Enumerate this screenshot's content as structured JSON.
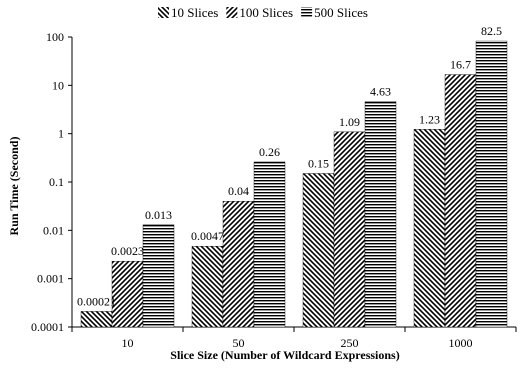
{
  "chart_data": {
    "type": "bar",
    "title": "",
    "xlabel": "Slice Size (Number of Wildcard Expressions)",
    "ylabel": "Run Time (Second)",
    "yscale": "log",
    "ylim": [
      0.0001,
      100
    ],
    "yticks": [
      "0.0001",
      "0.001",
      "0.01",
      "0.1",
      "1",
      "10",
      "100"
    ],
    "categories": [
      "10",
      "50",
      "250",
      "1000"
    ],
    "series": [
      {
        "name": "10 Slices",
        "pattern": "diagonal-left",
        "values": [
          0.00021,
          0.0047,
          0.15,
          1.23
        ],
        "labels": [
          "0.00021",
          "0.0047",
          "0.15",
          "1.23"
        ]
      },
      {
        "name": "100 Slices",
        "pattern": "diagonal-right",
        "values": [
          0.0023,
          0.04,
          1.09,
          16.7
        ],
        "labels": [
          "0.0023",
          "0.04",
          "1.09",
          "16.7"
        ]
      },
      {
        "name": "500 Slices",
        "pattern": "horizontal",
        "values": [
          0.013,
          0.26,
          4.63,
          82.5
        ],
        "labels": [
          "0.013",
          "0.26",
          "4.63",
          "82.5"
        ]
      }
    ],
    "legend_position": "top",
    "grid": false
  }
}
